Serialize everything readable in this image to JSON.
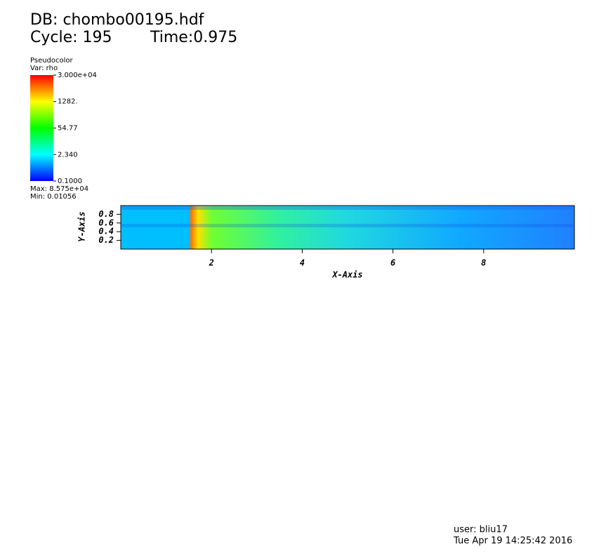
{
  "chart_data": {
    "type": "pseudocolor",
    "db_label": "DB: chombo00195.hdf",
    "cycle_label": "Cycle: 195",
    "time_label": "Time:0.975",
    "legend_title": "Pseudocolor",
    "legend_var": "Var: rho",
    "colorbar": {
      "log": true,
      "clim": [
        0.1,
        30000
      ],
      "ticks": [
        {
          "value": 30000,
          "label": "3.000e+04"
        },
        {
          "value": 1282,
          "label": "1282."
        },
        54.77,
        {
          "value": 2.34,
          "label": "2.340"
        },
        {
          "value": 0.1,
          "label": "0.1000"
        }
      ],
      "colors": [
        "#0000ff",
        "#00ffff",
        "#00ff00",
        "#ffff00",
        "#ff0000"
      ]
    },
    "max_label": "Max:  8.575e+04",
    "min_label": "Min:  0.01056",
    "xlabel": "X-Axis",
    "ylabel": "Y-Axis",
    "xlim": [
      0,
      10
    ],
    "ylim": [
      0,
      1
    ],
    "xticks": [
      2,
      4,
      6,
      8
    ],
    "yticks": [
      0.2,
      0.4,
      0.6,
      0.8
    ],
    "user_label": "user: bliu17",
    "date_label": "Tue Apr 19 14:25:42 2016"
  }
}
